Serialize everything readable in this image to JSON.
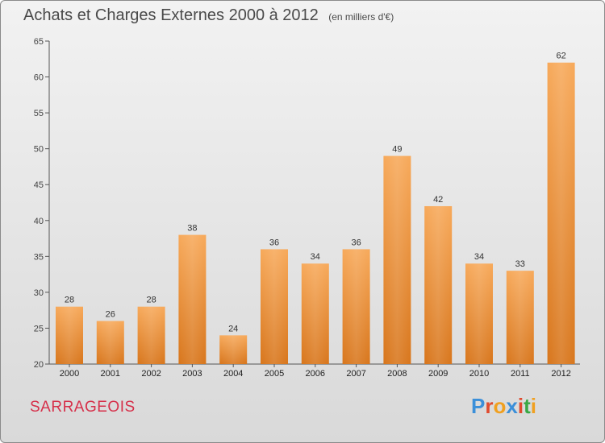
{
  "title": "Achats et Charges Externes 2000 à 2012",
  "subtitle": "(en milliers d'€)",
  "town": "SARRAGEOIS",
  "logo": {
    "letters": [
      "P",
      "r",
      "o",
      "x",
      "i",
      "t",
      "i"
    ],
    "colors": [
      "#3b8fd9",
      "#e04a2d",
      "#f0a020",
      "#3b8fd9",
      "#e04a2d",
      "#39a845",
      "#f0a020"
    ]
  },
  "colors": {
    "bar_light": "#f7a95a",
    "bar_dark": "#e07b22",
    "town": "#d6304a"
  },
  "chart_data": {
    "type": "bar",
    "title": "Achats et Charges Externes 2000 à 2012",
    "subtitle": "(en milliers d'€)",
    "categories": [
      "2000",
      "2001",
      "2002",
      "2003",
      "2004",
      "2005",
      "2006",
      "2007",
      "2008",
      "2009",
      "2010",
      "2011",
      "2012"
    ],
    "values": [
      28,
      26,
      28,
      38,
      24,
      36,
      34,
      36,
      49,
      42,
      34,
      33,
      62
    ],
    "ylim": [
      20,
      65
    ],
    "yticks": [
      20,
      25,
      30,
      35,
      40,
      45,
      50,
      55,
      60,
      65
    ],
    "grid": false,
    "data_labels": true
  }
}
